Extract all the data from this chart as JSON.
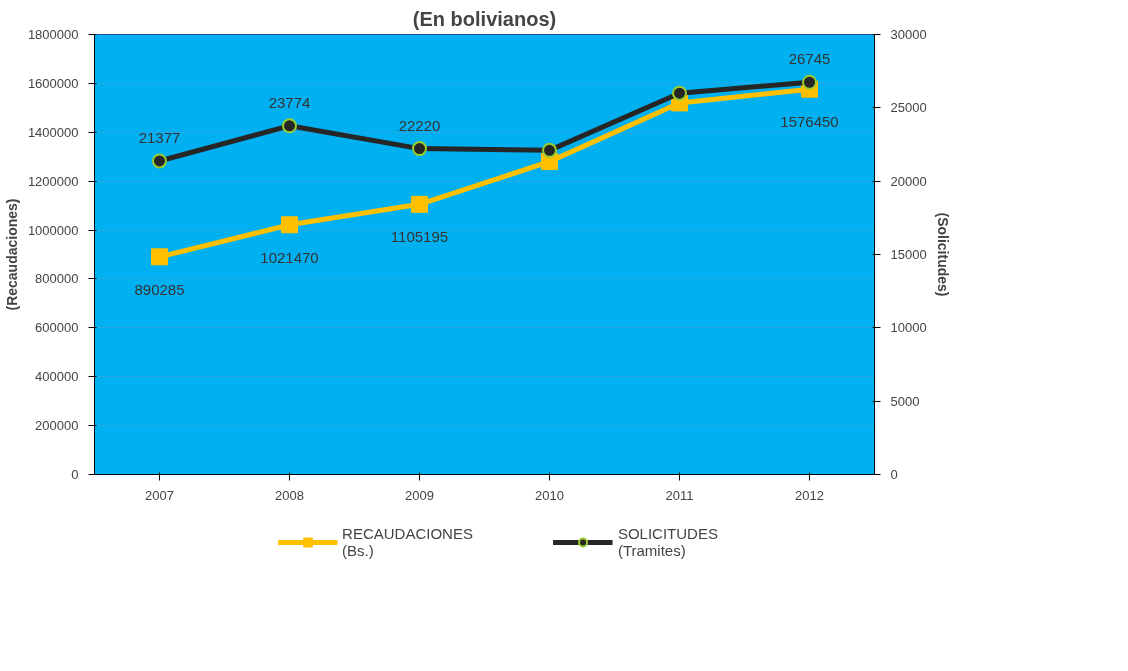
{
  "chart_data": {
    "type": "line",
    "title": "(En bolivianos)",
    "ylabel": "(Recaudaciones)",
    "y2label": "(Solicitudes)",
    "categories": [
      "2007",
      "2008",
      "2009",
      "2010",
      "2011",
      "2012"
    ],
    "series": [
      {
        "name": "RECAUDACIONES\n(Bs.)",
        "color": "#ffc000",
        "marker": "square",
        "values": [
          890285,
          1021470,
          1105195,
          1280000,
          1520000,
          1576450
        ],
        "value_labels": [
          "890285",
          "1021470",
          "1105195",
          null,
          null,
          "1576450"
        ]
      },
      {
        "name": "SOLICITUDES\n(Tramites)",
        "color": "#262626",
        "marker": "circle",
        "axis": "y2",
        "values": [
          21377,
          23774,
          22220,
          22100,
          26000,
          26745
        ],
        "value_labels": [
          "21377",
          "23774",
          "22220",
          null,
          null,
          "26745"
        ]
      }
    ],
    "ylim": [
      0,
      1800000
    ],
    "yticks": [
      0,
      200000,
      400000,
      600000,
      800000,
      1000000,
      1200000,
      1400000,
      1600000,
      1800000
    ],
    "y2lim": [
      0,
      30000
    ],
    "y2ticks": [
      0,
      5000,
      10000,
      15000,
      20000,
      25000,
      30000
    ],
    "grid": "y",
    "legend": "bottom",
    "line_style": "solid"
  }
}
